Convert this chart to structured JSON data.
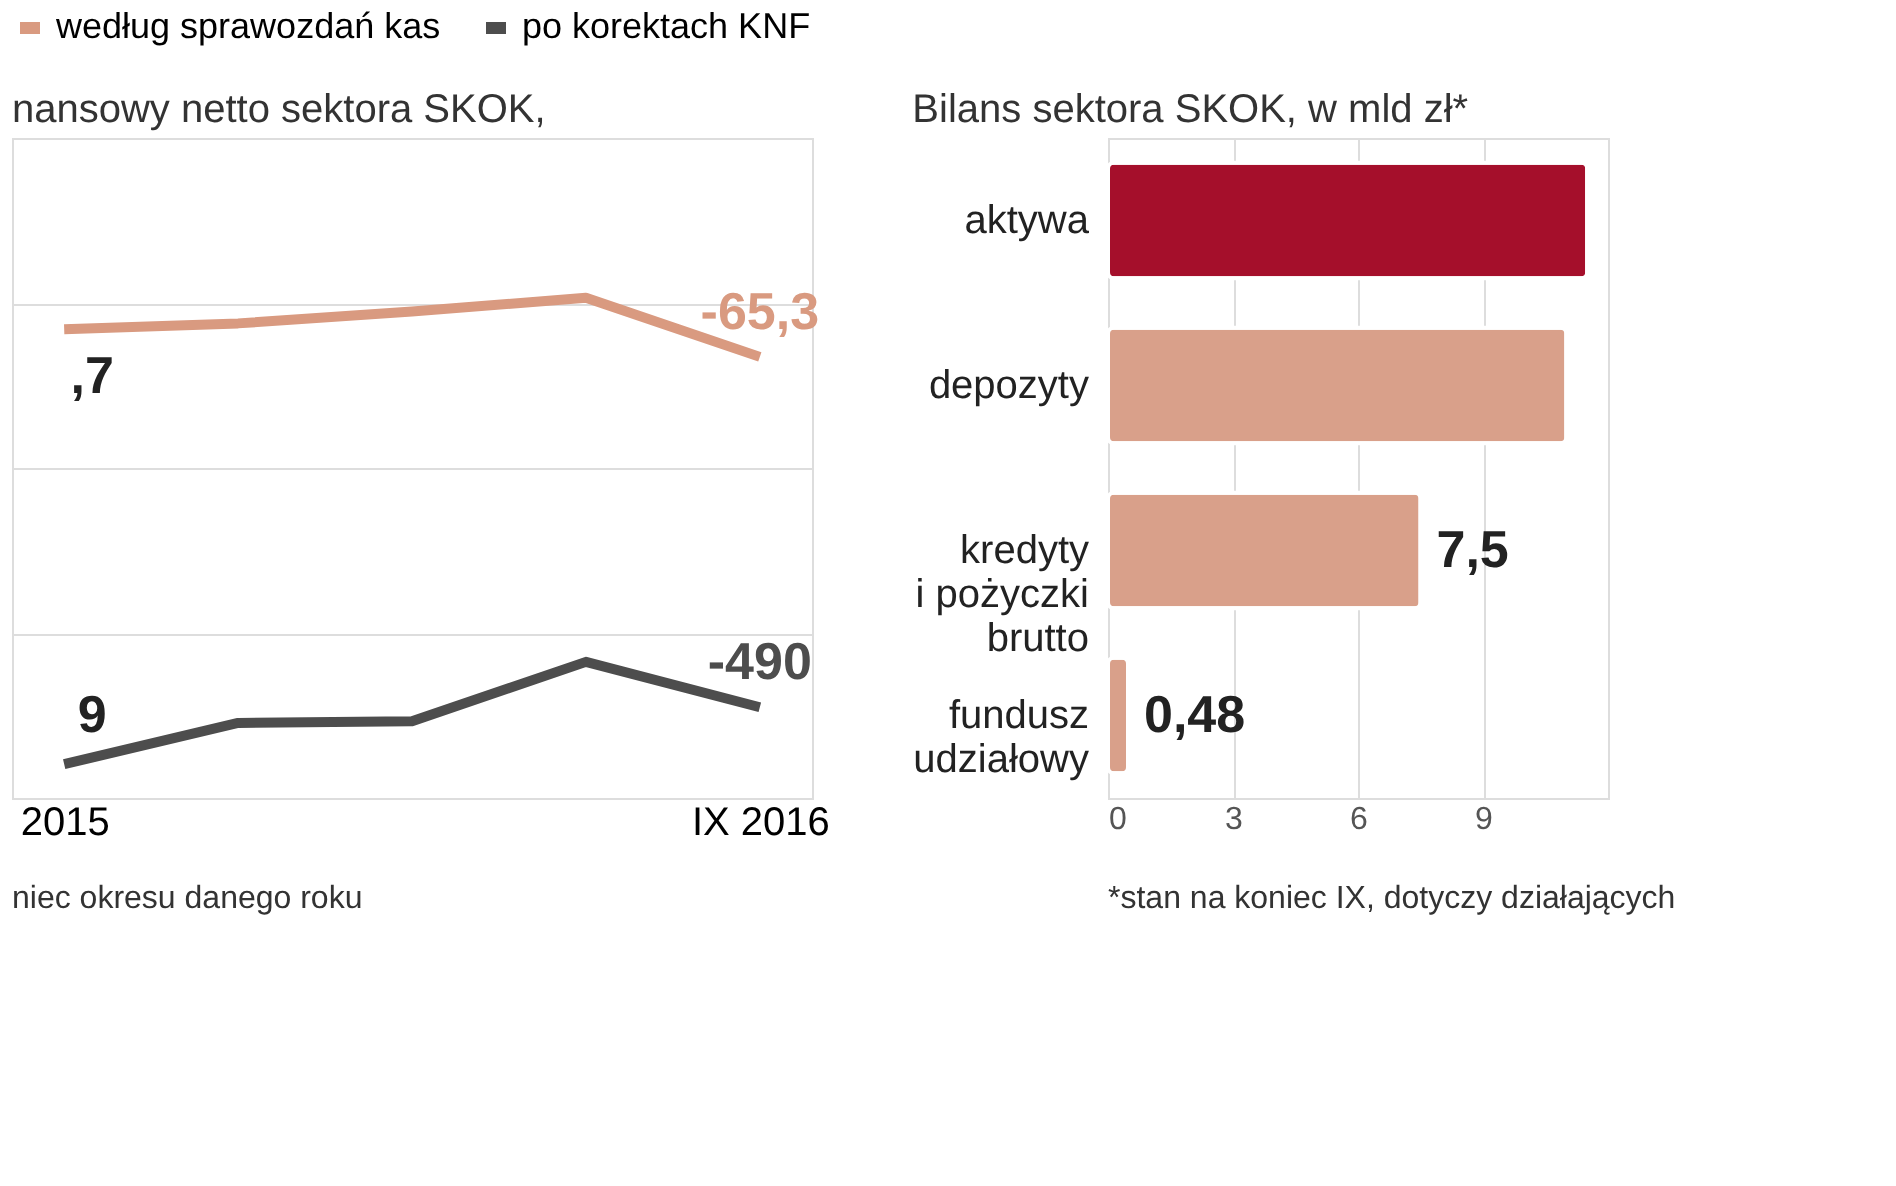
{
  "chart_data": [
    {
      "type": "line",
      "title": "nansowy netto sektora SKOK,",
      "categories": [
        "2015",
        null,
        null,
        null,
        "IX 2016"
      ],
      "ylim": [
        -600,
        200
      ],
      "yticks": [
        {
          "value": -400,
          "label": null
        },
        {
          "value": -200,
          "label": null
        },
        {
          "value": 0,
          "label": null
        }
      ],
      "tick_labels": "x",
      "legend": "top",
      "grid": "y",
      "annotations": [
        "niec okresu danego roku",
        {
          "text": ",7",
          "x": "2015",
          "y": -31.7
        },
        {
          "text": "9",
          "x": "2015",
          "y": -559
        }
      ],
      "series": [
        {
          "name": "według sprawozdań kas",
          "color": "#d99a80",
          "values": [
            -31.7,
            -24.7,
            -10.4,
            6.3,
            -65.3
          ],
          "value_labels": [
            null,
            null,
            null,
            null,
            "-65,3"
          ]
        },
        {
          "name": "po korektach KNF",
          "color": "#4d4d4d",
          "values": [
            -559,
            -509,
            -507,
            -435,
            -490
          ],
          "value_labels": [
            null,
            null,
            null,
            null,
            "-490"
          ]
        }
      ]
    },
    {
      "type": "bar",
      "orientation": "horizontal",
      "title": "Bilans sektora SKOK, w mld zł*",
      "categories": [
        "aktywa",
        "depozyty",
        "kredyty\ni pożyczki\nbrutto",
        "fundusz\nudziałowy"
      ],
      "values": [
        11.5,
        11.0,
        7.5,
        0.48
      ],
      "colors": [
        "#a50f2b",
        "#d9a08a",
        "#d9a08a",
        "#d9a08a"
      ],
      "value_labels": [
        null,
        null,
        "7,5",
        "0,48"
      ],
      "xlim": [
        0,
        12
      ],
      "xticks": [
        0,
        3,
        6,
        9
      ],
      "grid": "x",
      "annotations": [
        "*stan na koniec IX, dotyczy działających"
      ]
    }
  ]
}
